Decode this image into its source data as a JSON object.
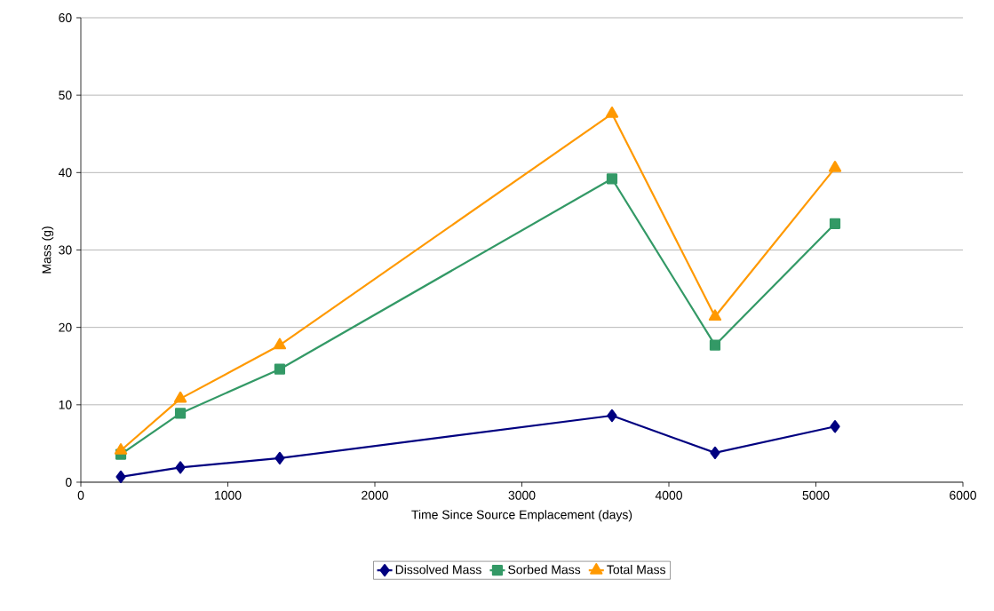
{
  "chart_data": {
    "type": "line",
    "xlabel": "Time Since Source Emplacement (days)",
    "ylabel": "Mass (g)",
    "x": [
      272,
      677,
      1353,
      3613,
      4314,
      5130
    ],
    "series": [
      {
        "name": "Dissolved Mass",
        "color": "#000080",
        "marker": "diamond",
        "values": [
          0.7,
          1.9,
          3.1,
          8.6,
          3.8,
          7.2
        ]
      },
      {
        "name": "Sorbed Mass",
        "color": "#339966",
        "marker": "square",
        "values": [
          3.6,
          8.9,
          14.6,
          39.2,
          17.7,
          33.4
        ]
      },
      {
        "name": "Total Mass",
        "color": "#ff9900",
        "marker": "triangle",
        "values": [
          4.1,
          10.8,
          17.7,
          47.6,
          21.4,
          40.6
        ]
      }
    ],
    "xlim": [
      0,
      6000
    ],
    "xticks": [
      0,
      1000,
      2000,
      3000,
      4000,
      5000,
      6000
    ],
    "ylim": [
      0,
      60
    ],
    "yticks": [
      0,
      10,
      20,
      30,
      40,
      50,
      60
    ],
    "grid": "y",
    "legend": "bottom",
    "line_style": "solid"
  }
}
